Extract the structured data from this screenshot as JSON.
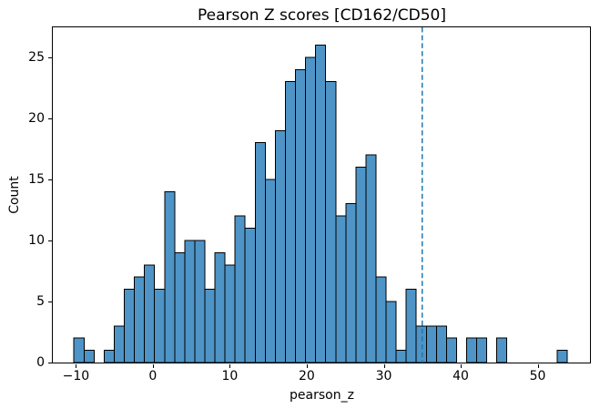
{
  "chart_data": {
    "type": "bar",
    "subtype": "histogram",
    "title": "Pearson Z scores [CD162/CD50]",
    "xlabel": "pearson_z",
    "ylabel": "Count",
    "xlim": [
      -13.0,
      56.8
    ],
    "ylim": [
      0,
      27.45
    ],
    "grid": false,
    "legend": "none",
    "x_ticks": {
      "values": [
        -10,
        0,
        10,
        20,
        30,
        40,
        50
      ],
      "labels": [
        "−10",
        "0",
        "10",
        "20",
        "30",
        "40",
        "50"
      ]
    },
    "y_ticks": {
      "values": [
        0,
        5,
        10,
        15,
        20,
        25
      ],
      "labels": [
        "0",
        "5",
        "10",
        "15",
        "20",
        "25"
      ]
    },
    "bins": {
      "start": -10.25,
      "width": 1.3082,
      "count": 49
    },
    "counts": [
      2,
      1,
      0,
      1,
      3,
      6,
      7,
      8,
      6,
      14,
      9,
      10,
      10,
      6,
      9,
      8,
      12,
      11,
      18,
      15,
      19,
      23,
      24,
      25,
      26,
      23,
      12,
      13,
      16,
      17,
      7,
      5,
      1,
      6,
      3,
      3,
      3,
      2,
      0,
      2,
      2,
      0,
      2,
      0,
      0,
      0,
      0,
      0,
      1
    ],
    "total_observations": 391,
    "vline": {
      "x": 35,
      "style": "dashed",
      "color": "#1f77b4"
    },
    "colors": {
      "bar_fill": "#4e94c6",
      "bar_edge": "#000000",
      "spine": "#000000",
      "text": "#000000"
    }
  }
}
